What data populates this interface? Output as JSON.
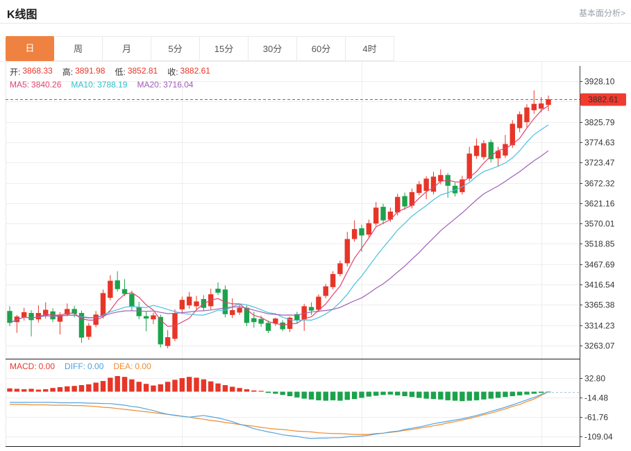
{
  "header": {
    "title": "K线图",
    "link": "基本面分析>"
  },
  "tabs": {
    "items": [
      "日",
      "周",
      "月",
      "5分",
      "15分",
      "30分",
      "60分",
      "4时"
    ],
    "selected_index": 0
  },
  "ohlc": [
    {
      "label": "开:",
      "value": "3868.33"
    },
    {
      "label": "高:",
      "value": "3891.98"
    },
    {
      "label": "低:",
      "value": "3852.81"
    },
    {
      "label": "收:",
      "value": "3882.61"
    }
  ],
  "ma_readout": [
    {
      "label": "MA5:",
      "value": "3840.26",
      "color": "#e0436f"
    },
    {
      "label": "MA10:",
      "value": "3788.19",
      "color": "#2fbfca"
    },
    {
      "label": "MA20:",
      "value": "3716.04",
      "color": "#9d5cb5"
    }
  ],
  "macd_readout": [
    {
      "label": "MACD:",
      "value": "0.00",
      "color": "#e4392e"
    },
    {
      "label": "DIFF:",
      "value": "0.00",
      "color": "#4a9fe0"
    },
    {
      "label": "DEA:",
      "value": "0.00",
      "color": "#ef8b2d"
    }
  ],
  "current_price_badge": "3882.61",
  "colors": {
    "up": "#e73528",
    "down": "#1ca24b",
    "ma5_line": "#e0436f",
    "ma10_line": "#49c0dc",
    "ma20_line": "#a05fb5",
    "diff_line": "#55a4e2",
    "dea_line": "#ef8b2d",
    "dashed_price_line": "#f5342c",
    "badge_bg": "#f23b2f",
    "tab_active_bg": "#ef8240",
    "grid": "#ededed",
    "axis": "#3c3c3c",
    "panel_divider": "#1a1a1a",
    "dashed_macd_ext": "#9cc6ea"
  },
  "chart_data": {
    "type": "candlestick",
    "title": "K线图 daily candlestick with MA5/MA10/MA20 overlay and MACD sub-panel",
    "legend": [
      "K",
      "MA5",
      "MA10",
      "MA20",
      "MACD",
      "DIFF",
      "DEA"
    ],
    "price_axis": {
      "top_value": 3928.1,
      "bottom_value": 3263.07,
      "step": 51.1575,
      "labels": [
        "3928.10",
        "",
        "3825.79",
        "3774.63",
        "3723.47",
        "3672.32",
        "3621.16",
        "3570.01",
        "3518.85",
        "3467.69",
        "3416.54",
        "3365.38",
        "3314.23",
        "3263.07"
      ]
    },
    "macd_axis": {
      "values": [
        32.8,
        -14.48,
        -61.76,
        -109.04
      ],
      "labels": [
        "32.80",
        "-14.48",
        "-61.76",
        "-109.04"
      ]
    },
    "current_price": 3882.61,
    "last_candle": {
      "open": 3868.33,
      "high": 3891.98,
      "low": 3852.81,
      "close": 3882.61
    },
    "ma_periods": [
      5,
      10,
      20
    ],
    "candles": [
      [
        3350,
        3362,
        3312,
        3320
      ],
      [
        3322,
        3340,
        3295,
        3336
      ],
      [
        3334,
        3358,
        3326,
        3347
      ],
      [
        3345,
        3352,
        3286,
        3327
      ],
      [
        3329,
        3364,
        3321,
        3345
      ],
      [
        3339,
        3372,
        3331,
        3353
      ],
      [
        3349,
        3357,
        3322,
        3329
      ],
      [
        3323,
        3347,
        3291,
        3341
      ],
      [
        3341,
        3369,
        3337,
        3355
      ],
      [
        3355,
        3363,
        3334,
        3343
      ],
      [
        3345,
        3351,
        3270,
        3283
      ],
      [
        3285,
        3320,
        3277,
        3313
      ],
      [
        3315,
        3350,
        3309,
        3341
      ],
      [
        3337,
        3404,
        3331,
        3395
      ],
      [
        3383,
        3440,
        3377,
        3426
      ],
      [
        3427,
        3450,
        3399,
        3405
      ],
      [
        3405,
        3430,
        3387,
        3393
      ],
      [
        3393,
        3401,
        3351,
        3361
      ],
      [
        3359,
        3373,
        3329,
        3337
      ],
      [
        3337,
        3349,
        3299,
        3331
      ],
      [
        3329,
        3346,
        3317,
        3339
      ],
      [
        3335,
        3341,
        3258,
        3266
      ],
      [
        3262,
        3302,
        3256,
        3284
      ],
      [
        3280,
        3354,
        3274,
        3344
      ],
      [
        3354,
        3386,
        3346,
        3378
      ],
      [
        3364,
        3398,
        3356,
        3386
      ],
      [
        3362,
        3388,
        3354,
        3374
      ],
      [
        3380,
        3390,
        3350,
        3358
      ],
      [
        3362,
        3406,
        3354,
        3392
      ],
      [
        3406,
        3422,
        3390,
        3396
      ],
      [
        3404,
        3414,
        3334,
        3342
      ],
      [
        3340,
        3382,
        3332,
        3352
      ],
      [
        3346,
        3368,
        3340,
        3358
      ],
      [
        3358,
        3364,
        3312,
        3320
      ],
      [
        3332,
        3348,
        3308,
        3322
      ],
      [
        3330,
        3338,
        3310,
        3318
      ],
      [
        3320,
        3326,
        3294,
        3300
      ],
      [
        3319,
        3333,
        3313,
        3331
      ],
      [
        3321,
        3327,
        3299,
        3304
      ],
      [
        3305,
        3336,
        3297,
        3333
      ],
      [
        3342,
        3348,
        3318,
        3327
      ],
      [
        3329,
        3368,
        3300,
        3362
      ],
      [
        3360,
        3372,
        3340,
        3351
      ],
      [
        3353,
        3392,
        3347,
        3386
      ],
      [
        3388,
        3418,
        3382,
        3412
      ],
      [
        3410,
        3450,
        3404,
        3443
      ],
      [
        3443,
        3477,
        3437,
        3470
      ],
      [
        3470,
        3549,
        3462,
        3531
      ],
      [
        3531,
        3578,
        3524,
        3556
      ],
      [
        3558,
        3567,
        3499,
        3540
      ],
      [
        3542,
        3580,
        3536,
        3571
      ],
      [
        3570,
        3624,
        3564,
        3610
      ],
      [
        3612,
        3620,
        3568,
        3578
      ],
      [
        3580,
        3610,
        3574,
        3600
      ],
      [
        3598,
        3645,
        3590,
        3637
      ],
      [
        3639,
        3648,
        3604,
        3613
      ],
      [
        3615,
        3658,
        3608,
        3649
      ],
      [
        3647,
        3677,
        3641,
        3669
      ],
      [
        3652,
        3689,
        3631,
        3683
      ],
      [
        3650,
        3700,
        3643,
        3688
      ],
      [
        3676,
        3706,
        3669,
        3692
      ],
      [
        3692,
        3697,
        3635,
        3665
      ],
      [
        3665,
        3673,
        3638,
        3646
      ],
      [
        3649,
        3690,
        3643,
        3681
      ],
      [
        3683,
        3763,
        3677,
        3746
      ],
      [
        3740,
        3784,
        3733,
        3766
      ],
      [
        3737,
        3780,
        3731,
        3772
      ],
      [
        3775,
        3781,
        3724,
        3732
      ],
      [
        3734,
        3763,
        3713,
        3753
      ],
      [
        3741,
        3793,
        3735,
        3770
      ],
      [
        3767,
        3830,
        3760,
        3821
      ],
      [
        3810,
        3852,
        3800,
        3845
      ],
      [
        3825,
        3870,
        3812,
        3862
      ],
      [
        3855,
        3905,
        3846,
        3871
      ],
      [
        3859,
        3888,
        3850,
        3872
      ],
      [
        3868.33,
        3891.98,
        3852.81,
        3882.61
      ]
    ],
    "macd_hist": [
      8,
      7,
      6,
      7,
      5,
      6,
      9,
      11,
      13,
      14,
      16,
      18,
      22,
      26,
      34,
      38,
      36,
      30,
      24,
      19,
      15,
      18,
      24,
      29,
      33,
      36,
      34,
      30,
      25,
      20,
      16,
      12,
      9,
      6,
      3,
      2,
      -3,
      -5,
      -8,
      -11,
      -14,
      -17,
      -19,
      -21,
      -22,
      -21,
      -22,
      -20,
      -18,
      -15,
      -12,
      -10,
      -8,
      -7,
      -9,
      -11,
      -13,
      -15,
      -17,
      -18,
      -19,
      -21,
      -22,
      -23,
      -22,
      -21,
      -19,
      -17,
      -15,
      -13,
      -11,
      -9,
      -7,
      -5,
      -3,
      -1
    ],
    "diff": [
      -26,
      -26,
      -26,
      -26,
      -26,
      -26,
      -26,
      -27,
      -27,
      -27,
      -27,
      -28,
      -28,
      -29,
      -29,
      -31,
      -33,
      -36,
      -38,
      -42,
      -46,
      -51,
      -55,
      -57,
      -60,
      -62,
      -60,
      -58,
      -61,
      -64,
      -68,
      -73,
      -79,
      -84,
      -90,
      -94,
      -98,
      -101,
      -105,
      -107,
      -109,
      -112,
      -114,
      -113,
      -113,
      -112,
      -112,
      -110,
      -109,
      -108,
      -106,
      -103,
      -101,
      -98,
      -96,
      -92,
      -89,
      -86,
      -82,
      -78,
      -75,
      -72,
      -69,
      -66,
      -62,
      -58,
      -53,
      -48,
      -43,
      -38,
      -32,
      -26,
      -20,
      -14,
      -7,
      0
    ],
    "dea": [
      -31,
      -31,
      -31,
      -32,
      -32,
      -32,
      -33,
      -33,
      -33,
      -34,
      -34,
      -35,
      -36,
      -38,
      -39,
      -41,
      -43,
      -45,
      -47,
      -49,
      -51,
      -53,
      -55,
      -58,
      -60,
      -62,
      -65,
      -67,
      -70,
      -72,
      -75,
      -77,
      -80,
      -82,
      -84,
      -87,
      -89,
      -91,
      -92,
      -94,
      -96,
      -97,
      -98,
      -100,
      -101,
      -102,
      -102,
      -103,
      -104,
      -104,
      -104,
      -102,
      -101,
      -99,
      -97,
      -94,
      -92,
      -89,
      -86,
      -83,
      -80,
      -76,
      -73,
      -69,
      -65,
      -61,
      -56,
      -52,
      -47,
      -42,
      -36,
      -31,
      -24,
      -18,
      -9,
      0
    ]
  }
}
